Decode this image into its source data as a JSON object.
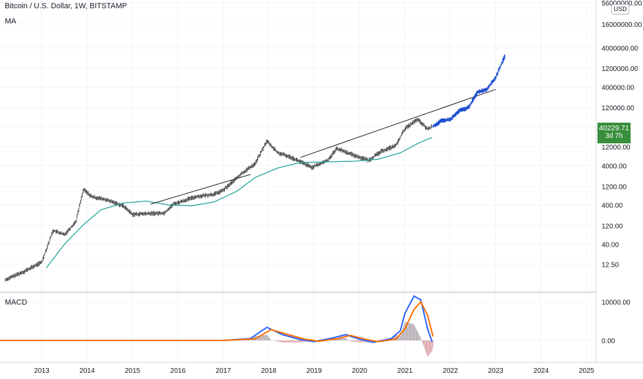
{
  "legend": {
    "title": "Bitcoin / U.S. Dollar, 1W, BITSTAMP",
    "ma_label": "MA",
    "macd_label": "MACD"
  },
  "price_scale": {
    "currency": "USD",
    "last_price": "40229.71",
    "countdown": "3d 7h"
  },
  "colors": {
    "candles": "#3a3a3a",
    "projection": "#1f4fd1",
    "ma": "#26a69a",
    "trendline": "#1a1a1a",
    "macd": "#2962ff",
    "signal": "#ff6d00",
    "hist_pos": "#b0a8b0",
    "hist_neg": "#d9a0a8",
    "price_tag": "#388e3c"
  },
  "chart_data": [
    {
      "type": "line",
      "panel": "price",
      "scale": "log",
      "yticks": [
        "56000000.00",
        "16000000.00",
        "4000000.00",
        "1200000.00",
        "400000.00",
        "120000.00",
        "40000.00",
        "12000.00",
        "4000.00",
        "1200.00",
        "400.00",
        "120.00",
        "40.00",
        "12.50"
      ],
      "xticks": [
        "2013",
        "2014",
        "2015",
        "2016",
        "2017",
        "2018",
        "2019",
        "2020",
        "2021",
        "2022",
        "2023",
        "2024",
        "2025"
      ],
      "series": [
        {
          "kind": "weekly-candles",
          "points": [
            [
              2012.2,
              5
            ],
            [
              2012.6,
              8
            ],
            [
              2013.0,
              14
            ],
            [
              2013.25,
              90
            ],
            [
              2013.5,
              70
            ],
            [
              2013.75,
              150
            ],
            [
              2013.92,
              1000
            ],
            [
              2014.1,
              650
            ],
            [
              2014.4,
              550
            ],
            [
              2014.8,
              380
            ],
            [
              2015.0,
              230
            ],
            [
              2015.3,
              240
            ],
            [
              2015.7,
              250
            ],
            [
              2015.9,
              420
            ],
            [
              2016.4,
              650
            ],
            [
              2016.8,
              750
            ],
            [
              2017.0,
              950
            ],
            [
              2017.4,
              2500
            ],
            [
              2017.7,
              4500
            ],
            [
              2017.96,
              17000
            ],
            [
              2018.2,
              8500
            ],
            [
              2018.5,
              6500
            ],
            [
              2018.95,
              3600
            ],
            [
              2019.3,
              5500
            ],
            [
              2019.5,
              11000
            ],
            [
              2019.9,
              7200
            ],
            [
              2020.2,
              5500
            ],
            [
              2020.5,
              9500
            ],
            [
              2020.8,
              13000
            ],
            [
              2021.0,
              35000
            ],
            [
              2021.28,
              60000
            ],
            [
              2021.5,
              34000
            ],
            [
              2021.6,
              40229.71
            ]
          ]
        },
        {
          "kind": "projection",
          "points": [
            [
              2021.62,
              40000
            ],
            [
              2021.8,
              55000
            ],
            [
              2022.0,
              60000
            ],
            [
              2022.2,
              100000
            ],
            [
              2022.4,
              120000
            ],
            [
              2022.6,
              300000
            ],
            [
              2022.8,
              350000
            ],
            [
              2023.0,
              700000
            ],
            [
              2023.15,
              1800000
            ],
            [
              2023.2,
              2400000
            ]
          ]
        },
        {
          "kind": "ma",
          "points": [
            [
              2013.1,
              10
            ],
            [
              2013.5,
              40
            ],
            [
              2013.9,
              120
            ],
            [
              2014.3,
              300
            ],
            [
              2014.8,
              450
            ],
            [
              2015.3,
              500
            ],
            [
              2015.8,
              400
            ],
            [
              2016.3,
              380
            ],
            [
              2016.8,
              480
            ],
            [
              2017.3,
              900
            ],
            [
              2017.7,
              2000
            ],
            [
              2018.2,
              3500
            ],
            [
              2018.7,
              4800
            ],
            [
              2019.3,
              5000
            ],
            [
              2019.9,
              5200
            ],
            [
              2020.4,
              5800
            ],
            [
              2020.9,
              8500
            ],
            [
              2021.3,
              15000
            ],
            [
              2021.6,
              21000
            ]
          ]
        },
        {
          "kind": "trendline",
          "points": [
            [
              2015.4,
              420
            ],
            [
              2017.6,
              2400
            ]
          ]
        },
        {
          "kind": "trendline",
          "points": [
            [
              2018.7,
              6500
            ],
            [
              2023.0,
              350000
            ]
          ]
        }
      ]
    },
    {
      "type": "line",
      "panel": "macd",
      "yticks": [
        "10000.00",
        "0.00"
      ],
      "series": [
        {
          "name": "MACD",
          "points": [
            [
              2012.0,
              0
            ],
            [
              2017.0,
              0
            ],
            [
              2017.6,
              500
            ],
            [
              2017.96,
              3400
            ],
            [
              2018.3,
              1500
            ],
            [
              2018.7,
              200
            ],
            [
              2019.0,
              -300
            ],
            [
              2019.4,
              600
            ],
            [
              2019.7,
              1500
            ],
            [
              2020.0,
              300
            ],
            [
              2020.3,
              -500
            ],
            [
              2020.7,
              500
            ],
            [
              2020.9,
              2500
            ],
            [
              2021.0,
              7000
            ],
            [
              2021.2,
              11500
            ],
            [
              2021.35,
              10500
            ],
            [
              2021.5,
              3000
            ],
            [
              2021.6,
              -400
            ]
          ]
        },
        {
          "name": "Signal",
          "points": [
            [
              2012.0,
              0
            ],
            [
              2017.0,
              0
            ],
            [
              2017.7,
              400
            ],
            [
              2018.05,
              2800
            ],
            [
              2018.4,
              1600
            ],
            [
              2018.8,
              300
            ],
            [
              2019.1,
              -200
            ],
            [
              2019.5,
              400
            ],
            [
              2019.8,
              1300
            ],
            [
              2020.1,
              400
            ],
            [
              2020.4,
              -300
            ],
            [
              2020.8,
              300
            ],
            [
              2021.0,
              3000
            ],
            [
              2021.2,
              8000
            ],
            [
              2021.35,
              10000
            ],
            [
              2021.5,
              6500
            ],
            [
              2021.62,
              1000
            ]
          ]
        }
      ]
    }
  ]
}
